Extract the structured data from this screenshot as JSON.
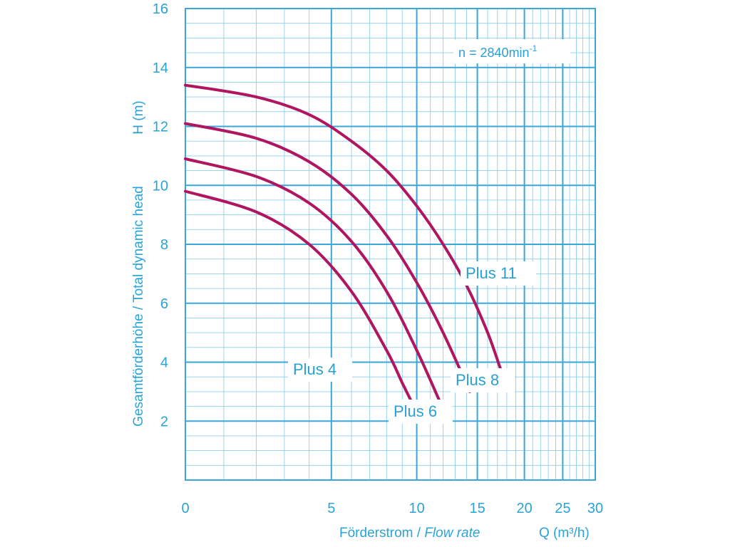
{
  "chart_data": {
    "type": "line",
    "xlabel_prefix": "Förderstrom / ",
    "xlabel_italic": "Flow rate",
    "xunit_symbol": "Q (m³/h)",
    "ylabel": "Gesamtförderhöhe / Total dynamic head",
    "yunit_symbol": "H (m)",
    "note_prefix": "n = 2840min",
    "note_superscript": "-1",
    "x_scale": "log(Q+5)",
    "xlim": [
      0,
      30
    ],
    "ylim": [
      0,
      16
    ],
    "x_major_ticks": [
      0,
      5,
      10,
      15,
      20,
      25,
      30
    ],
    "x_tick_labels": [
      "0",
      "5",
      "10",
      "15",
      "20",
      "25",
      "30"
    ],
    "y_major_ticks": [
      2,
      4,
      6,
      8,
      10,
      12,
      14,
      16
    ],
    "y_tick_labels": [
      "2",
      "4",
      "6",
      "8",
      "10",
      "12",
      "14",
      "16"
    ],
    "grid": true,
    "series": [
      {
        "name": "Plus 4",
        "x": [
          0,
          2,
          4,
          6,
          8,
          9,
          10
        ],
        "y": [
          9.8,
          9.1,
          8.0,
          6.4,
          4.4,
          3.3,
          2.3
        ]
      },
      {
        "name": "Plus 6",
        "x": [
          0,
          2,
          4,
          6,
          8,
          10,
          11.8
        ],
        "y": [
          10.9,
          10.3,
          9.4,
          8.1,
          6.4,
          4.4,
          2.6
        ]
      },
      {
        "name": "Plus 8",
        "x": [
          0,
          2,
          4,
          6,
          8,
          10,
          12,
          14.3
        ],
        "y": [
          12.1,
          11.6,
          10.8,
          9.7,
          8.3,
          6.7,
          5.0,
          3.0
        ]
      },
      {
        "name": "Plus 11",
        "x": [
          0,
          2,
          4,
          6,
          8,
          10,
          12,
          14,
          16,
          17.5
        ],
        "y": [
          13.4,
          13.0,
          12.4,
          11.5,
          10.5,
          9.3,
          8.0,
          6.6,
          5.0,
          3.6
        ]
      }
    ],
    "colors": {
      "curve": "#b0155f",
      "grid_major": "#3aa6da",
      "grid_minor": "#8ccfeb",
      "text": "#2aa3d6"
    }
  }
}
